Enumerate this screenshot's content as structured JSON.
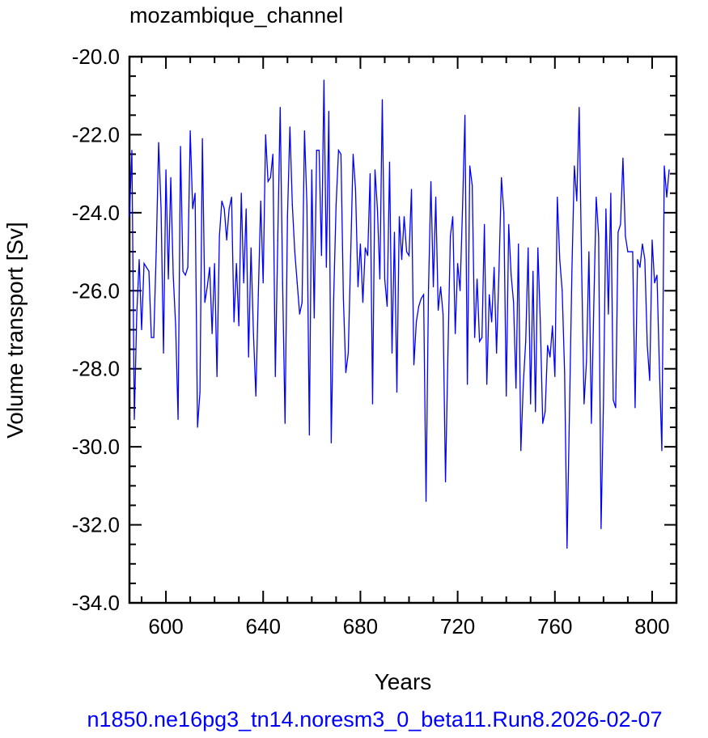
{
  "chart_data": {
    "type": "line",
    "title": "mozambique_channel",
    "xlabel": "Years",
    "ylabel": "Volume transport [Sv]",
    "footer": "n1850.ne16pg3_tn14.noresm3_0_beta11.Run8.2026-02-07",
    "xlim": [
      585,
      810
    ],
    "ylim": [
      -34.0,
      -20.0
    ],
    "x_ticks": [
      600,
      640,
      680,
      720,
      760,
      800
    ],
    "y_ticks": [
      -20.0,
      -22.0,
      -24.0,
      -26.0,
      -28.0,
      -30.0,
      -32.0,
      -34.0
    ],
    "line_color": "#0000ff",
    "grid": false,
    "series": [
      {
        "x_start": 585,
        "x_step": 1,
        "values": [
          -24.1,
          -22.4,
          -29.3,
          -26.6,
          -25.2,
          -27.0,
          -25.3,
          -25.4,
          -25.5,
          -27.2,
          -27.2,
          -25.0,
          -22.2,
          -23.9,
          -27.6,
          -22.9,
          -25.7,
          -23.1,
          -25.6,
          -26.9,
          -29.3,
          -22.3,
          -25.5,
          -25.6,
          -25.4,
          -21.9,
          -23.9,
          -23.5,
          -29.5,
          -28.6,
          -22.1,
          -26.3,
          -25.9,
          -25.4,
          -27.1,
          -25.3,
          -28.2,
          -24.6,
          -23.7,
          -23.9,
          -24.7,
          -23.9,
          -23.6,
          -26.8,
          -25.3,
          -26.9,
          -23.5,
          -25.8,
          -23.9,
          -27.7,
          -24.9,
          -27.1,
          -28.7,
          -26.1,
          -23.7,
          -25.8,
          -22.0,
          -23.2,
          -23.1,
          -22.5,
          -28.2,
          -24.7,
          -21.3,
          -25.8,
          -29.4,
          -24.1,
          -21.8,
          -23.8,
          -25.0,
          -25.8,
          -26.6,
          -26.3,
          -21.9,
          -23.8,
          -29.7,
          -22.9,
          -26.7,
          -22.4,
          -22.4,
          -25.1,
          -20.6,
          -25.4,
          -21.4,
          -29.9,
          -26.2,
          -23.8,
          -22.4,
          -22.5,
          -26.2,
          -28.1,
          -27.6,
          -25.1,
          -22.5,
          -23.4,
          -25.9,
          -24.8,
          -26.3,
          -24.9,
          -25.1,
          -23.0,
          -28.9,
          -22.9,
          -23.9,
          -25.7,
          -21.1,
          -25.7,
          -26.4,
          -22.7,
          -27.6,
          -24.5,
          -28.6,
          -24.1,
          -25.2,
          -24.1,
          -25.0,
          -25.1,
          -23.4,
          -27.9,
          -26.8,
          -26.4,
          -26.2,
          -26.1,
          -31.4,
          -26.0,
          -23.2,
          -25.9,
          -23.6,
          -26.5,
          -25.9,
          -26.6,
          -30.9,
          -27.6,
          -24.6,
          -24.1,
          -27.1,
          -25.3,
          -26.0,
          -23.9,
          -21.5,
          -28.4,
          -22.8,
          -23.3,
          -27.2,
          -25.7,
          -27.3,
          -27.2,
          -24.3,
          -28.4,
          -26.1,
          -26.8,
          -25.4,
          -27.6,
          -25.5,
          -23.1,
          -24.0,
          -28.7,
          -24.3,
          -25.6,
          -26.3,
          -28.5,
          -24.8,
          -30.1,
          -28.4,
          -27.3,
          -24.9,
          -28.9,
          -25.5,
          -29.1,
          -24.9,
          -26.8,
          -29.4,
          -29.1,
          -27.4,
          -27.7,
          -26.9,
          -28.2,
          -23.6,
          -25.2,
          -26.0,
          -28.1,
          -32.6,
          -29.1,
          -25.5,
          -22.8,
          -23.7,
          -21.3,
          -25.4,
          -28.9,
          -27.8,
          -25.0,
          -29.4,
          -26.4,
          -23.6,
          -24.6,
          -32.1,
          -28.8,
          -23.9,
          -26.6,
          -23.5,
          -28.8,
          -29.0,
          -24.5,
          -24.3,
          -22.6,
          -24.6,
          -25.0,
          -25.0,
          -25.0,
          -29.0,
          -25.2,
          -25.4,
          -24.8,
          -25.2,
          -27.4,
          -28.3,
          -24.7,
          -25.8,
          -25.6,
          -28.0,
          -30.1,
          -22.8,
          -23.6,
          -22.9
        ]
      }
    ]
  }
}
